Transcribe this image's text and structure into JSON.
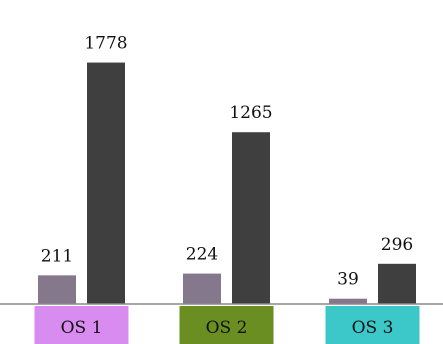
{
  "chart_data": {
    "type": "bar",
    "categories": [
      "OS 1",
      "OS 2",
      "OS 3"
    ],
    "series": [
      {
        "values": [
          211,
          224,
          39
        ],
        "color": "#85778c"
      },
      {
        "values": [
          1778,
          1265,
          296
        ],
        "color": "#3f3f3f"
      }
    ],
    "category_label_colors": [
      "#d98cf0",
      "#6b8e23",
      "#3cc8c8"
    ],
    "ylim": [
      0,
      1900
    ],
    "grid": false,
    "legend": "none",
    "title": "",
    "xlabel": "",
    "ylabel": ""
  }
}
